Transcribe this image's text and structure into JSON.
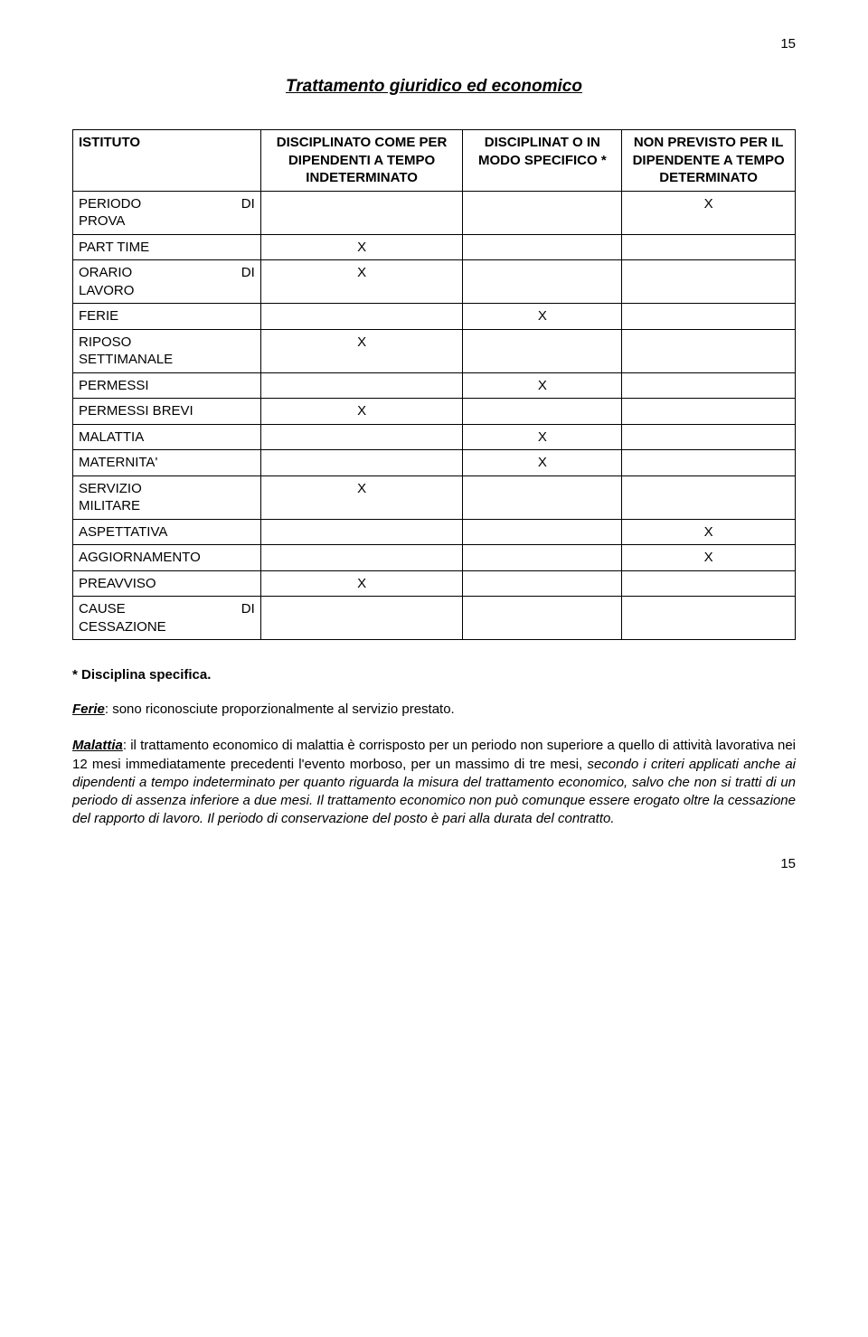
{
  "page_number_top": "15",
  "page_number_bottom": "15",
  "title": "Trattamento giuridico ed economico",
  "table": {
    "headers": {
      "istituto": "ISTITUTO",
      "col1": "DISCIPLINATO COME PER DIPENDENTI A TEMPO INDETERMINATO",
      "col2": "DISCIPLINAT O IN MODO SPECIFICO *",
      "col3": "NON PREVISTO PER IL DIPENDENTE A TEMPO DETERMINATO"
    },
    "rows": [
      {
        "label_left": "PERIODO",
        "label_right": "DI",
        "label_line2": "PROVA",
        "c1": "",
        "c2": "",
        "c3": "X"
      },
      {
        "label_left": "PART TIME",
        "label_right": "",
        "label_line2": "",
        "c1": "X",
        "c2": "",
        "c3": ""
      },
      {
        "label_left": "ORARIO",
        "label_right": "DI",
        "label_line2": "LAVORO",
        "c1": "X",
        "c2": "",
        "c3": ""
      },
      {
        "label_left": "FERIE",
        "label_right": "",
        "label_line2": "",
        "c1": "",
        "c2": "X",
        "c3": ""
      },
      {
        "label_left": "RIPOSO",
        "label_right": "",
        "label_line2": "SETTIMANALE",
        "c1": "X",
        "c2": "",
        "c3": ""
      },
      {
        "label_left": "PERMESSI",
        "label_right": "",
        "label_line2": "",
        "c1": "",
        "c2": "X",
        "c3": ""
      },
      {
        "label_left": "PERMESSI BREVI",
        "label_right": "",
        "label_line2": "",
        "c1": "X",
        "c2": "",
        "c3": ""
      },
      {
        "label_left": "MALATTIA",
        "label_right": "",
        "label_line2": "",
        "c1": "",
        "c2": "X",
        "c3": ""
      },
      {
        "label_left": "MATERNITA'",
        "label_right": "",
        "label_line2": "",
        "c1": "",
        "c2": "X",
        "c3": ""
      },
      {
        "label_left": "SERVIZIO",
        "label_right": "",
        "label_line2": "MILITARE",
        "c1": "X",
        "c2": "",
        "c3": ""
      },
      {
        "label_left": "ASPETTATIVA",
        "label_right": "",
        "label_line2": "",
        "c1": "",
        "c2": "",
        "c3": "X"
      },
      {
        "label_left": "AGGIORNAMENTO",
        "label_right": "",
        "label_line2": "",
        "c1": "",
        "c2": "",
        "c3": "X"
      },
      {
        "label_left": "PREAVVISO",
        "label_right": "",
        "label_line2": "",
        "c1": "X",
        "c2": "",
        "c3": ""
      },
      {
        "label_left": "CAUSE",
        "label_right": "DI",
        "label_line2": "CESSAZIONE",
        "c1": "",
        "c2": "",
        "c3": ""
      }
    ]
  },
  "disciplina_note": "* Disciplina specifica.",
  "ferie_term": "Ferie",
  "ferie_text": ": sono riconosciute proporzionalmente al servizio prestato.",
  "malattia_term": "Malattia",
  "malattia_text_1": ": il trattamento economico di malattia è corrisposto per un periodo non superiore a quello  di attività lavorativa nei 12 mesi immediatamente precedenti l'evento morboso, per un massimo di tre mesi, ",
  "malattia_italic": "secondo i criteri applicati anche ai dipendenti a tempo indeterminato per quanto riguarda la misura del trattamento economico, salvo che non si tratti di un periodo di assenza inferiore a due mesi. Il trattamento economico non può comunque essere erogato oltre la cessazione del rapporto di lavoro. Il periodo di conservazione del posto è pari alla durata del contratto."
}
